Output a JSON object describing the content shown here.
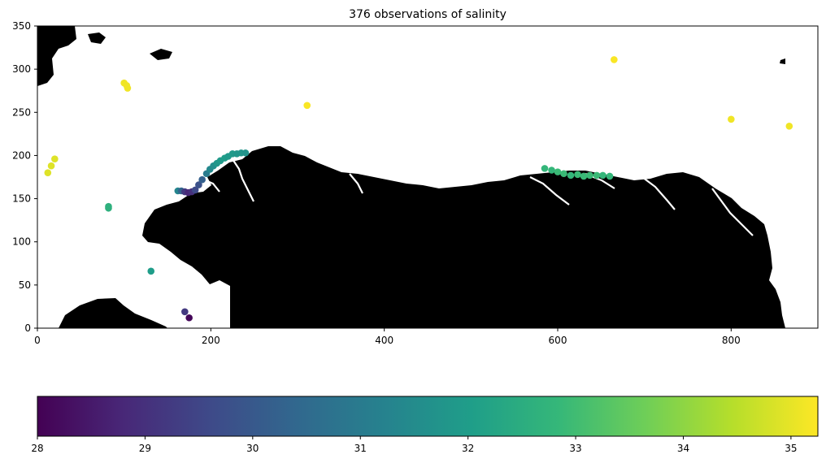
{
  "chart_data": {
    "type": "scatter",
    "title": "376 observations of salinity",
    "xlabel": "",
    "ylabel": "",
    "xlim": [
      0,
      900
    ],
    "ylim": [
      0,
      350
    ],
    "x_ticks": [
      0,
      200,
      400,
      600,
      800
    ],
    "y_ticks": [
      0,
      50,
      100,
      150,
      200,
      250,
      300,
      350
    ],
    "grid": false,
    "background": "land mask (black) / water (white)",
    "colorbar": {
      "orientation": "horizontal",
      "colormap": "viridis",
      "range": [
        28,
        35.25
      ],
      "ticks": [
        28,
        29,
        30,
        31,
        32,
        33,
        34,
        35
      ]
    },
    "points": [
      {
        "x": 12,
        "y": 180,
        "v": 34.9
      },
      {
        "x": 16,
        "y": 188,
        "v": 34.9
      },
      {
        "x": 20,
        "y": 196,
        "v": 34.9
      },
      {
        "x": 82,
        "y": 141,
        "v": 32.6
      },
      {
        "x": 82,
        "y": 139,
        "v": 32.6
      },
      {
        "x": 100,
        "y": 284,
        "v": 35.1
      },
      {
        "x": 103,
        "y": 281,
        "v": 35.1
      },
      {
        "x": 104,
        "y": 278,
        "v": 35.1
      },
      {
        "x": 131,
        "y": 66,
        "v": 32.0
      },
      {
        "x": 170,
        "y": 19,
        "v": 29.2
      },
      {
        "x": 175,
        "y": 12,
        "v": 28.1
      },
      {
        "x": 162,
        "y": 159,
        "v": 31.3
      },
      {
        "x": 166,
        "y": 159,
        "v": 30.3
      },
      {
        "x": 170,
        "y": 158,
        "v": 29.2
      },
      {
        "x": 174,
        "y": 157,
        "v": 28.8
      },
      {
        "x": 178,
        "y": 158,
        "v": 29.0
      },
      {
        "x": 182,
        "y": 160,
        "v": 29.6
      },
      {
        "x": 186,
        "y": 166,
        "v": 29.8
      },
      {
        "x": 190,
        "y": 172,
        "v": 30.2
      },
      {
        "x": 195,
        "y": 179,
        "v": 31.0
      },
      {
        "x": 199,
        "y": 184,
        "v": 31.4
      },
      {
        "x": 203,
        "y": 188,
        "v": 31.6
      },
      {
        "x": 207,
        "y": 191,
        "v": 31.8
      },
      {
        "x": 211,
        "y": 194,
        "v": 31.9
      },
      {
        "x": 216,
        "y": 197,
        "v": 32.0
      },
      {
        "x": 220,
        "y": 199,
        "v": 31.9
      },
      {
        "x": 225,
        "y": 202,
        "v": 31.9
      },
      {
        "x": 230,
        "y": 202,
        "v": 31.8
      },
      {
        "x": 235,
        "y": 203,
        "v": 31.8
      },
      {
        "x": 240,
        "y": 203,
        "v": 31.7
      },
      {
        "x": 311,
        "y": 258,
        "v": 35.2
      },
      {
        "x": 585,
        "y": 185,
        "v": 32.8
      },
      {
        "x": 593,
        "y": 183,
        "v": 32.8
      },
      {
        "x": 600,
        "y": 181,
        "v": 32.9
      },
      {
        "x": 607,
        "y": 179,
        "v": 32.9
      },
      {
        "x": 615,
        "y": 177,
        "v": 32.8
      },
      {
        "x": 623,
        "y": 178,
        "v": 32.9
      },
      {
        "x": 630,
        "y": 176,
        "v": 32.9
      },
      {
        "x": 637,
        "y": 177,
        "v": 32.9
      },
      {
        "x": 645,
        "y": 177,
        "v": 32.9
      },
      {
        "x": 652,
        "y": 177,
        "v": 32.8
      },
      {
        "x": 660,
        "y": 176,
        "v": 32.8
      },
      {
        "x": 665,
        "y": 311,
        "v": 35.2
      },
      {
        "x": 800,
        "y": 242,
        "v": 35.1
      },
      {
        "x": 867,
        "y": 234,
        "v": 35.1
      }
    ]
  }
}
